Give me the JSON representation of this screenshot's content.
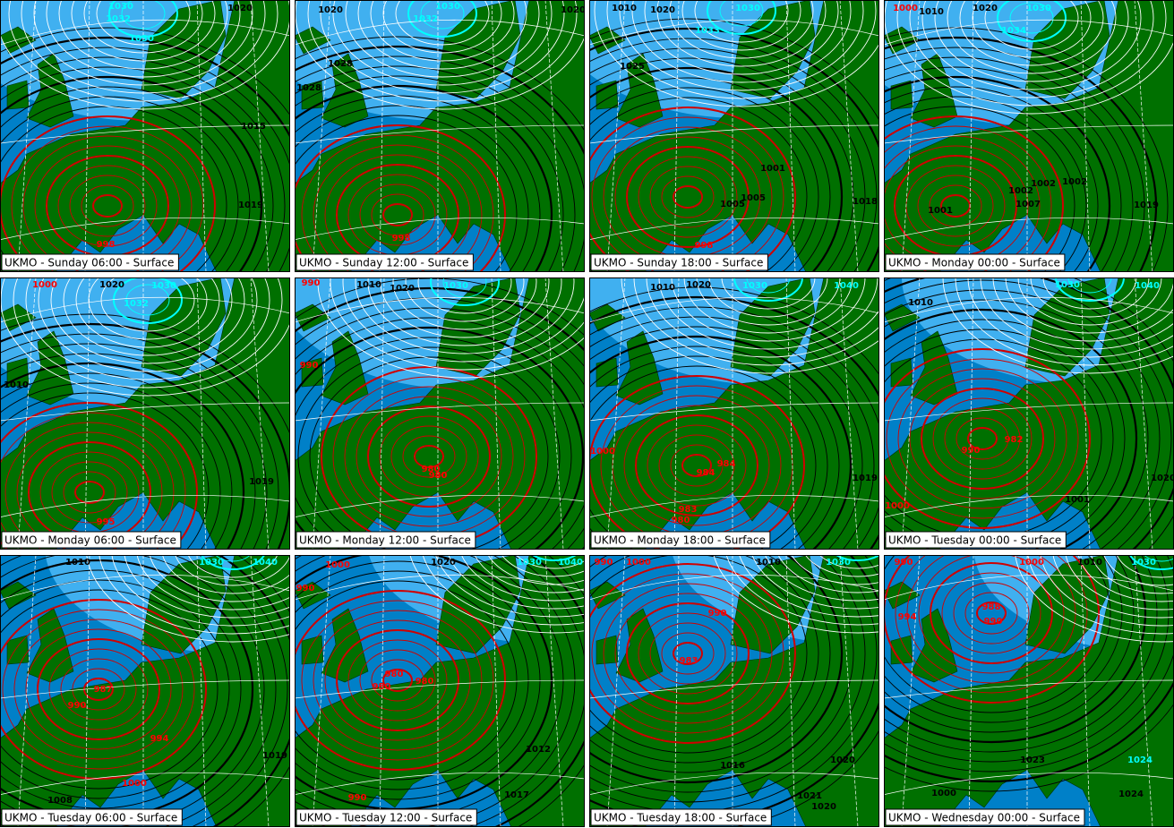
{
  "panels": [
    {
      "caption": "UKMO - Sunday 06:00 - Surface",
      "labels": [
        "1030",
        "1032",
        "1030",
        "1020",
        "1015",
        "1019",
        "998"
      ]
    },
    {
      "caption": "UKMO - Sunday 12:00 - Surface",
      "labels": [
        "1020",
        "1030",
        "1032",
        "1028",
        "1028",
        "1020",
        "998"
      ]
    },
    {
      "caption": "UKMO - Sunday 18:00 - Surface",
      "labels": [
        "1010",
        "1020",
        "1030",
        "1033",
        "1025",
        "1001",
        "1005",
        "1005",
        "1018",
        "998"
      ]
    },
    {
      "caption": "UKMO - Monday 00:00 - Surface",
      "labels": [
        "1000",
        "1010",
        "1020",
        "1030",
        "1034",
        "1002",
        "1002",
        "1002",
        "1007",
        "1001",
        "1019"
      ]
    },
    {
      "caption": "UKMO - Monday 06:00 - Surface",
      "labels": [
        "1000",
        "1020",
        "1030",
        "1032",
        "1010",
        "1019",
        "995"
      ]
    },
    {
      "caption": "UKMO - Monday 12:00 - Surface",
      "labels": [
        "990",
        "1010",
        "1020",
        "1030",
        "990",
        "980",
        "980"
      ]
    },
    {
      "caption": "UKMO - Monday 18:00 - Surface",
      "labels": [
        "1010",
        "1020",
        "1030",
        "1040",
        "1000",
        "984",
        "984",
        "983",
        "980",
        "1019"
      ]
    },
    {
      "caption": "UKMO - Tuesday 00:00 - Surface",
      "labels": [
        "1010",
        "1030",
        "1040",
        "990",
        "982",
        "1001",
        "1000",
        "1020"
      ]
    },
    {
      "caption": "UKMO - Tuesday 06:00 - Surface",
      "labels": [
        "1010",
        "1030",
        "1040",
        "987",
        "990",
        "994",
        "1000",
        "1019",
        "1008"
      ]
    },
    {
      "caption": "UKMO - Tuesday 12:00 - Surface",
      "labels": [
        "1000",
        "990",
        "1020",
        "1030",
        "1040",
        "980",
        "980",
        "980",
        "1012",
        "990",
        "1017"
      ]
    },
    {
      "caption": "UKMO - Tuesday 18:00 - Surface",
      "labels": [
        "990",
        "1000",
        "990",
        "983",
        "1010",
        "1030",
        "1016",
        "1020",
        "1021",
        "1020"
      ]
    },
    {
      "caption": "UKMO - Wednesday 00:00 - Surface",
      "labels": [
        "990",
        "994",
        "1000",
        "1010",
        "1030",
        "988",
        "990",
        "1023",
        "1024",
        "1000",
        "1024"
      ]
    }
  ]
}
